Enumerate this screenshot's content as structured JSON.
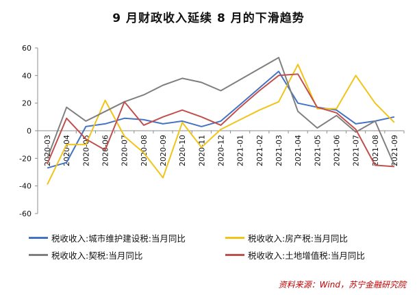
{
  "title": "9 月财政收入延续 8 月的下滑趋势",
  "source": "资料来源：Wind，苏宁金融研究院",
  "chart_data": {
    "type": "line",
    "categories": [
      "2020-03",
      "2020-04",
      "2020-05",
      "2020-06",
      "2020-07",
      "2020-08",
      "2020-09",
      "2020-10",
      "2020-11",
      "2020-12",
      "2021-01",
      "2021-02",
      "2021-03",
      "2021-04",
      "2021-05",
      "2021-06",
      "2021-07",
      "2021-08",
      "2021-09"
    ],
    "ylim": [
      -60,
      60
    ],
    "yticks": [
      -60,
      -40,
      -20,
      0,
      20,
      40,
      60
    ],
    "grid": false,
    "legend_position": "bottom",
    "series": [
      {
        "name": "税收收入:城市维护建设税:当月同比",
        "color": "#4472c4",
        "values": [
          -27,
          -23,
          3,
          5,
          9,
          8,
          5,
          7,
          3,
          7,
          19,
          31,
          43,
          20,
          17,
          15,
          5,
          7,
          10
        ]
      },
      {
        "name": "税收收入:房产税:当月同比",
        "color": "#f0c419",
        "values": [
          -39,
          -10,
          -10,
          22,
          -4,
          -16,
          -34,
          6,
          -12,
          1,
          8,
          15,
          21,
          48,
          16,
          16,
          40,
          20,
          6
        ]
      },
      {
        "name": "税收收入:契税:当月同比",
        "color": "#7f7f7f",
        "values": [
          -20,
          17,
          7,
          14,
          21,
          26,
          33,
          38,
          35,
          29,
          37,
          45,
          53,
          14,
          2,
          11,
          -1,
          7,
          -25
        ]
      },
      {
        "name": "税收收入:土地增值税:当月同比",
        "color": "#c0504d",
        "values": [
          -24,
          9,
          -6,
          -14,
          21,
          4,
          10,
          15,
          10,
          4,
          17,
          29,
          40,
          41,
          17,
          13,
          1,
          -25,
          -26
        ]
      }
    ]
  }
}
